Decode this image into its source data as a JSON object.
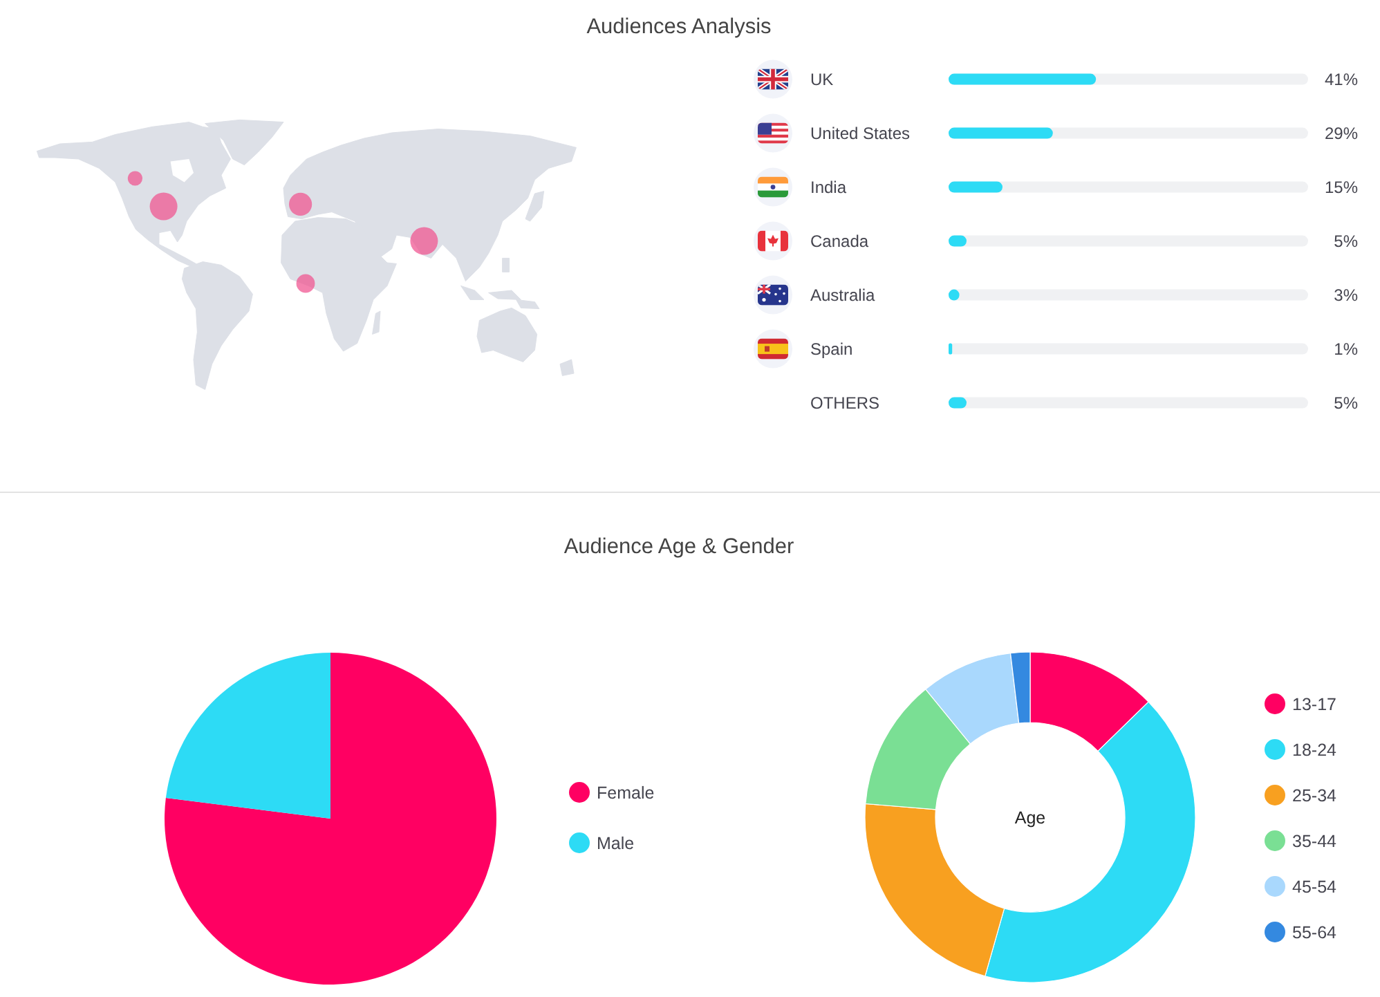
{
  "chart_data": [
    {
      "type": "bar",
      "title": "Audiences Analysis",
      "orientation": "horizontal",
      "categories": [
        "UK",
        "United States",
        "India",
        "Canada",
        "Australia",
        "Spain",
        "OTHERS"
      ],
      "values": [
        41,
        29,
        15,
        5,
        3,
        1,
        5
      ],
      "value_labels": [
        "41%",
        "29%",
        "15%",
        "5%",
        "3%",
        "1%",
        "5%"
      ],
      "color": "#2ddbf5",
      "xlim": [
        0,
        100
      ],
      "tick_labels": "y"
    },
    {
      "type": "pie",
      "title": "Audience Age & Gender",
      "categories": [
        "Female",
        "Male"
      ],
      "values": [
        77,
        23
      ],
      "colors": [
        "#ff0062",
        "#2ddbf5"
      ],
      "legend": "right"
    },
    {
      "type": "donut",
      "categories": [
        "13-17",
        "18-24",
        "25-34",
        "35-44",
        "45-54",
        "55-64"
      ],
      "values": [
        12.7,
        41.7,
        21.9,
        12.8,
        9.0,
        1.9
      ],
      "colors": [
        "#ff0062",
        "#2ddbf5",
        "#f8a020",
        "#7adf94",
        "#a9d8fd",
        "#3489e0"
      ],
      "legend": "right",
      "annotations": [
        "Age"
      ]
    }
  ]
}
